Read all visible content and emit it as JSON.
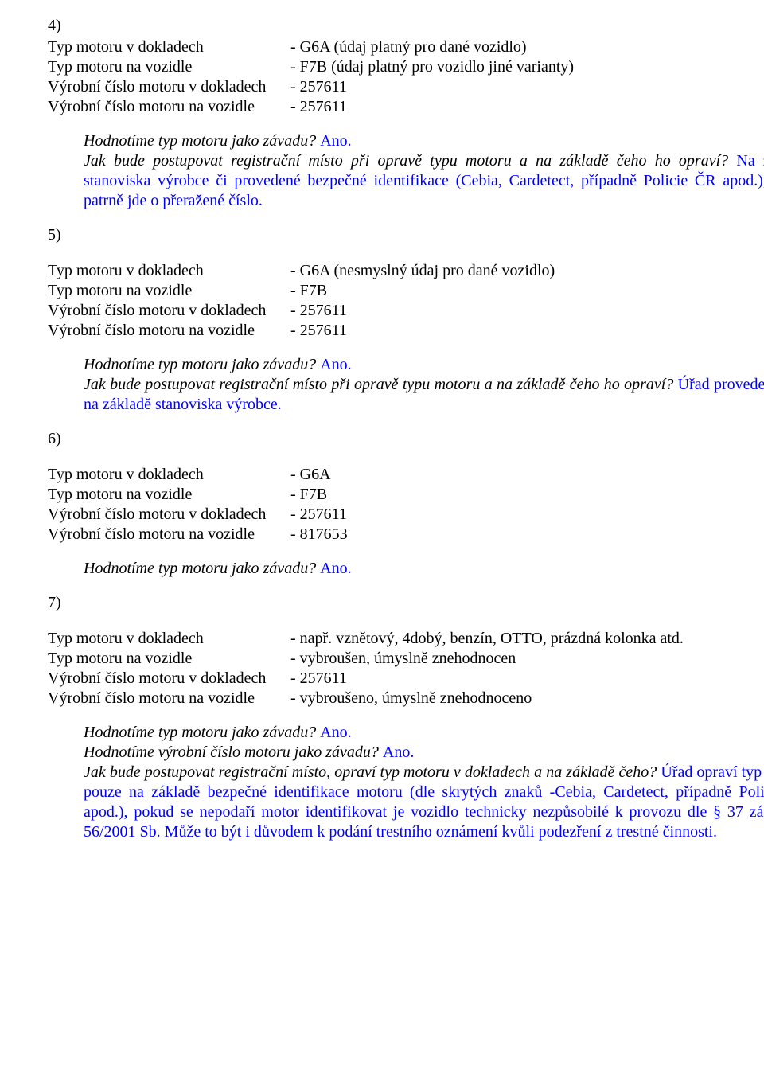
{
  "labels": {
    "typ_doklad": "Typ motoru v dokladech",
    "typ_vozidlo": "Typ motoru na vozidle",
    "vc_doklad": "Výrobní číslo motoru v dokladech",
    "vc_vozidlo": "Výrobní číslo motoru na vozidle"
  },
  "section4": {
    "marker": "4)",
    "v1": "- G6A (údaj platný pro dané vozidlo)",
    "v2": "- F7B (údaj platný pro vozidlo jiné varianty)",
    "v3": "- 257611",
    "v4": "- 257611",
    "q1": "Hodnotíme typ motoru jako závadu? ",
    "a1": "Ano.",
    "q2a": "Jak bude postupovat registrační místo při opravě typu motoru a na základě čeho ho opraví?",
    "a2": " Na základě stanoviska výrobce či provedené bezpečné identifikace (Cebia, Cardetect, případně Policie ČR apod.), neboť patrně jde o přeražené číslo."
  },
  "section5": {
    "marker": "5)",
    "v1": "- G6A (nesmyslný údaj pro dané vozidlo)",
    "v2": "- F7B",
    "v3": "- 257611",
    "v4": "- 257611",
    "q1": "Hodnotíme typ motoru jako závadu? ",
    "a1": "Ano.",
    "q2a": "Jak bude postupovat registrační místo při opravě typu motoru a na základě čeho ho opraví?",
    "a2": " Úřad provede změnu na základě stanoviska výrobce."
  },
  "section6": {
    "marker": "6)",
    "v1": "- G6A",
    "v2": "- F7B",
    "v3": "- 257611",
    "v4": "- 817653",
    "q1": "Hodnotíme typ motoru jako závadu? ",
    "a1": "Ano."
  },
  "section7": {
    "marker": "7)",
    "v1": "- např. vznětový, 4dobý, benzín, OTTO, prázdná kolonka atd.",
    "v2": "- vybroušen, úmyslně znehodnocen",
    "v3": "- 257611",
    "v4": "- vybroušeno, úmyslně znehodnoceno",
    "q1": "Hodnotíme typ motoru jako závadu? ",
    "a1": "Ano.",
    "q2": "Hodnotíme výrobní číslo motoru jako závadu? ",
    "a2": "Ano.",
    "q3a": "Jak bude postupovat registrační místo, opraví typ motoru v dokladech a na základě čeho?",
    "a3": " Úřad opraví typ motoru pouze na základě bezpečné identifikace motoru (dle skrytých znaků -Cebia, Cardetect, případně Policie ČR apod.), pokud se nepodaří motor identifikovat je vozidlo technicky nezpůsobilé k provozu dle § 37 zákona č. 56/2001 Sb. Může to být i důvodem k podání trestního oznámení kvůli podezření z trestné činnosti."
  }
}
